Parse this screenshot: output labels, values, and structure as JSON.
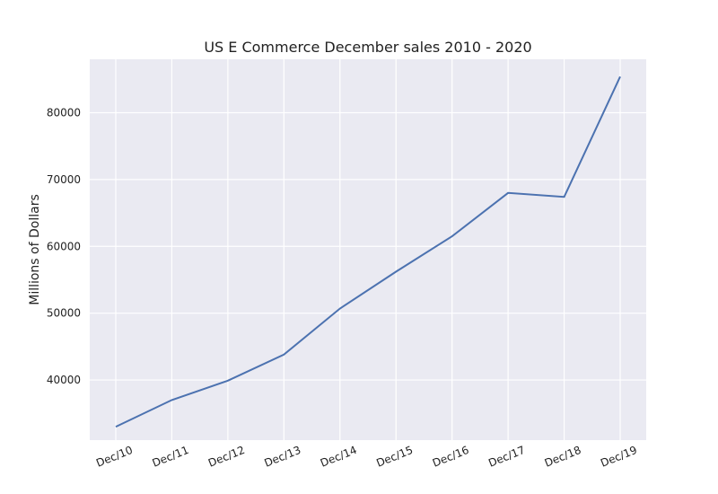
{
  "chart_data": {
    "type": "line",
    "title": "US E Commerce December sales 2010 - 2020",
    "xlabel": "",
    "ylabel": "Millions of Dollars",
    "categories": [
      "Dec/10",
      "Dec/11",
      "Dec/12",
      "Dec/13",
      "Dec/14",
      "Dec/15",
      "Dec/16",
      "Dec/17",
      "Dec/18",
      "Dec/19"
    ],
    "values": [
      33000,
      37000,
      39900,
      43800,
      50700,
      56200,
      61500,
      68000,
      67400,
      85400
    ],
    "yticks": [
      40000,
      50000,
      60000,
      70000,
      80000
    ],
    "ylim": [
      31000,
      88000
    ],
    "grid": true,
    "colors": {
      "background": "#eaeaf2",
      "grid": "#ffffff",
      "line": "#4c72b0"
    }
  }
}
